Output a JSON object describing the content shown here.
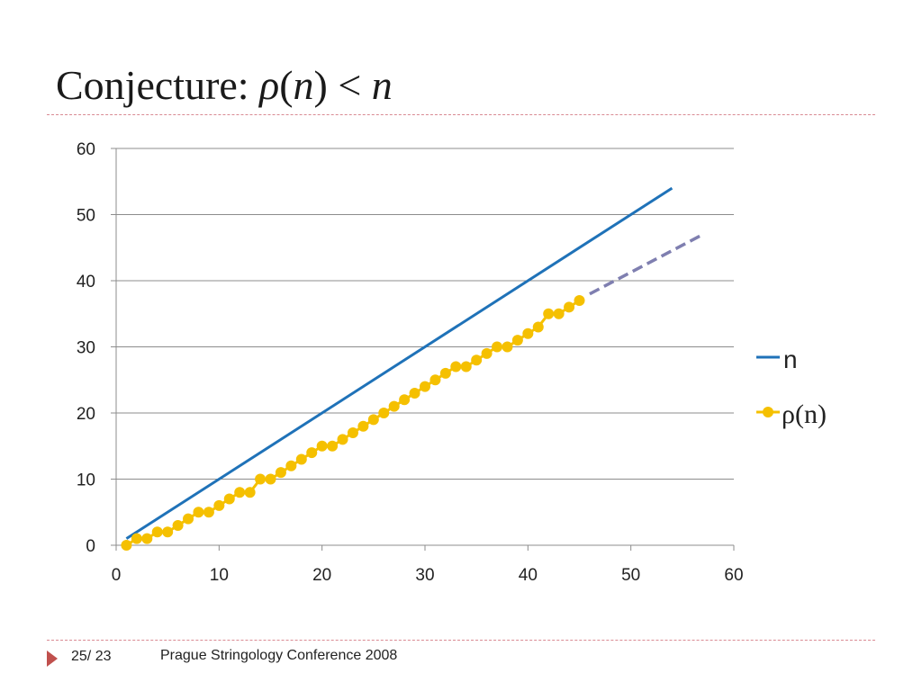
{
  "slide": {
    "title_prefix": "Conjecture: ",
    "title_rho": "ρ",
    "title_open": "(",
    "title_n1": "n",
    "title_close": ")",
    "title_lt": " < ",
    "title_n2": "n"
  },
  "footer": {
    "page": "25/ 23",
    "conference": "Prague Stringology Conference 2008"
  },
  "colors": {
    "n_line": "#1f72b8",
    "rho_series": "#f5c000",
    "extrapolation": "#7f7fb0",
    "grid": "#8c8c8c"
  },
  "chart_data": {
    "type": "line",
    "title": "",
    "xlabel": "",
    "ylabel": "",
    "xlim": [
      0,
      60
    ],
    "ylim": [
      0,
      60
    ],
    "xticks": [
      0,
      10,
      20,
      30,
      40,
      50,
      60
    ],
    "yticks": [
      0,
      10,
      20,
      30,
      40,
      50,
      60
    ],
    "grid": "horizontal",
    "legend_position": "right",
    "series": [
      {
        "name": "n",
        "style": "solid-line",
        "x": [
          1,
          54
        ],
        "y": [
          1,
          54
        ]
      },
      {
        "name": "ρ(n)",
        "style": "line-with-markers",
        "x": [
          1,
          2,
          3,
          4,
          5,
          6,
          7,
          8,
          9,
          10,
          11,
          12,
          13,
          14,
          15,
          16,
          17,
          18,
          19,
          20,
          21,
          22,
          23,
          24,
          25,
          26,
          27,
          28,
          29,
          30,
          31,
          32,
          33,
          34,
          35,
          36,
          37,
          38,
          39,
          40,
          41,
          42,
          43,
          44,
          45
        ],
        "y": [
          0,
          1,
          1,
          2,
          2,
          3,
          4,
          5,
          5,
          6,
          7,
          8,
          8,
          10,
          10,
          11,
          12,
          13,
          14,
          15,
          15,
          16,
          17,
          18,
          19,
          20,
          21,
          22,
          23,
          24,
          25,
          26,
          27,
          27,
          28,
          29,
          30,
          30,
          31,
          32,
          33,
          35,
          35,
          36,
          37
        ]
      },
      {
        "style": "dashed-extrapolation",
        "x": [
          46,
          57
        ],
        "y": [
          38,
          47
        ]
      }
    ]
  }
}
